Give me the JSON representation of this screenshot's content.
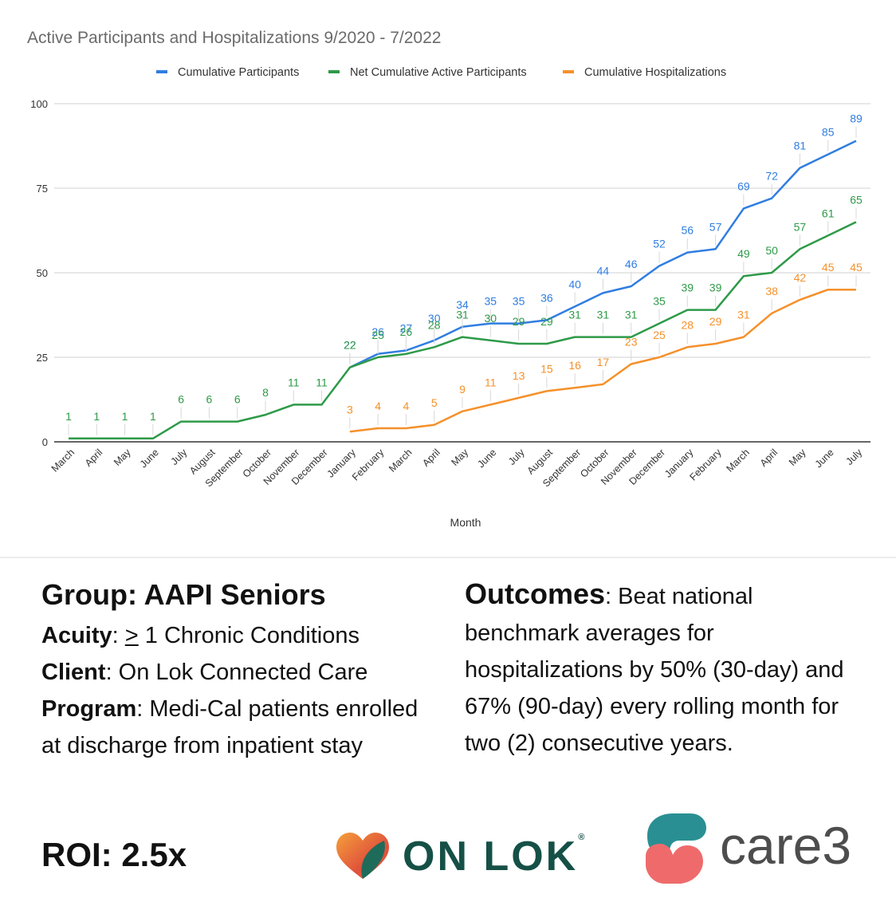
{
  "chart_data": {
    "type": "line",
    "title": "Active Participants and Hospitalizations 9/2020 - 7/2022",
    "xlabel": "Month",
    "ylabel": "",
    "ylim": [
      0,
      100
    ],
    "yticks": [
      0,
      25,
      50,
      75,
      100
    ],
    "grid": true,
    "legend_position": "top",
    "categories": [
      "March",
      "April",
      "May",
      "June",
      "July",
      "August",
      "September",
      "October",
      "November",
      "December",
      "January",
      "February",
      "March",
      "April",
      "May",
      "June",
      "July",
      "August",
      "September",
      "October",
      "November",
      "December",
      "January",
      "February",
      "March",
      "April",
      "May",
      "June",
      "July"
    ],
    "series": [
      {
        "name": "Cumulative Participants",
        "color": "#2f7de1",
        "values": [
          null,
          null,
          null,
          null,
          null,
          null,
          null,
          null,
          null,
          null,
          22,
          26,
          27,
          30,
          34,
          35,
          35,
          36,
          40,
          44,
          46,
          52,
          56,
          57,
          69,
          72,
          81,
          85,
          89
        ]
      },
      {
        "name": "Net Cumulative Active Participants",
        "color": "#2e9a48",
        "values": [
          1,
          1,
          1,
          1,
          6,
          6,
          6,
          8,
          11,
          11,
          22,
          25,
          26,
          28,
          31,
          30,
          29,
          29,
          31,
          31,
          31,
          35,
          39,
          39,
          49,
          50,
          57,
          61,
          65
        ]
      },
      {
        "name": "Cumulative Hospitalizations",
        "color": "#f5902a",
        "values": [
          null,
          null,
          null,
          null,
          null,
          null,
          null,
          null,
          null,
          null,
          3,
          4,
          4,
          5,
          9,
          11,
          13,
          15,
          16,
          17,
          23,
          25,
          28,
          29,
          31,
          38,
          42,
          45,
          45
        ]
      }
    ]
  },
  "info": {
    "group_heading": "Group: AAPI Seniors",
    "acuity_label": "Acuity",
    "acuity_symbol": ">",
    "acuity_value": " 1 Chronic Conditions",
    "client_label": "Client",
    "client_value": ": On Lok Connected Care",
    "program_label": "Program",
    "program_value": ": Medi-Cal patients enrolled at discharge from inpatient stay",
    "outcomes_label": "Outcomes",
    "outcomes_value": ": Beat national benchmark averages for hospitalizations by 50% (30-day) and 67% (90-day) every rolling month for two (2) consecutive years.",
    "roi": "ROI: 2.5x"
  },
  "logos": {
    "onlok_text": "ON LOK",
    "onlok_reg": "®",
    "care3_text": "care3",
    "onlok_colors": [
      "#f5a03a",
      "#e0533c",
      "#1f6b5a"
    ],
    "care3_colors": [
      "#2a8f93",
      "#ef6b6b"
    ]
  }
}
